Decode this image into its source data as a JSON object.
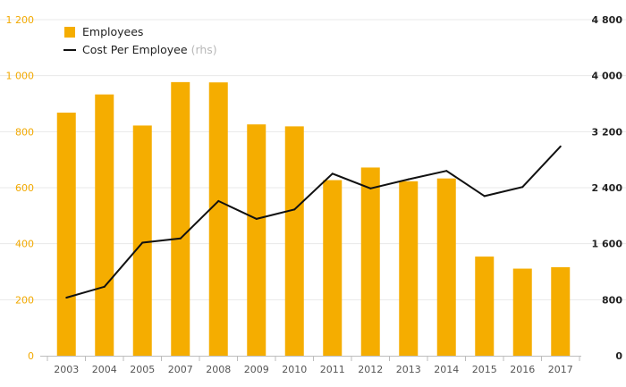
{
  "chart_data": {
    "type": "bar",
    "categories": [
      "2003",
      "2004",
      "2005",
      "2007",
      "2008",
      "2009",
      "2010",
      "2011",
      "2012",
      "2013",
      "2014",
      "2015",
      "2016",
      "2017"
    ],
    "series": [
      {
        "name": "Employees",
        "type": "bar",
        "axis": "left",
        "color": "#f5ad00",
        "values": [
          868,
          933,
          822,
          977,
          976,
          826,
          819,
          627,
          672,
          623,
          633,
          354,
          311,
          316
        ]
      },
      {
        "name": "Cost Per Employee",
        "legend_suffix": "(rhs)",
        "type": "line",
        "axis": "right",
        "color": "#111111",
        "values": [
          830,
          985,
          1615,
          1675,
          2210,
          1955,
          2090,
          2600,
          2390,
          2520,
          2640,
          2280,
          2410,
          2990
        ]
      }
    ],
    "left_axis": {
      "ylim": [
        0,
        1200
      ],
      "ticks": [
        0,
        200,
        400,
        600,
        800,
        1000,
        1200
      ],
      "tick_labels": [
        "0",
        "200",
        "400",
        "600",
        "800",
        "1 000",
        "1 200"
      ],
      "color": "#f2a900"
    },
    "right_axis": {
      "ylim": [
        0,
        4800
      ],
      "ticks": [
        0,
        800,
        1600,
        2400,
        3200,
        4000,
        4800
      ],
      "tick_labels": [
        "0",
        "800",
        "1 600",
        "2 400",
        "3 200",
        "4 000",
        "4 800"
      ],
      "color": "#222222"
    },
    "grid": true,
    "legend_position": "top-left"
  }
}
